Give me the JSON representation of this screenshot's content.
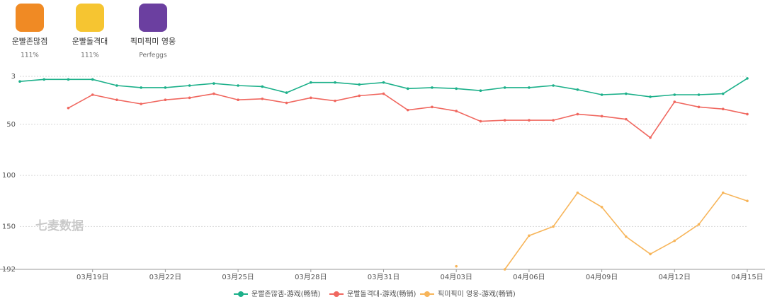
{
  "apps": [
    {
      "name": "운빨존많겜",
      "sub": "111%",
      "color": "#f08a24"
    },
    {
      "name": "운빨돌격대",
      "sub": "111%",
      "color": "#f6c531"
    },
    {
      "name": "픽미픽미 영웅",
      "sub": "Perfeggs",
      "color": "#6b3fa0"
    }
  ],
  "chart_data": {
    "type": "line",
    "watermark": "七麦数据",
    "categories": [
      null,
      null,
      null,
      "03月19日",
      null,
      null,
      "03月22日",
      null,
      null,
      "03月25日",
      null,
      null,
      "03月28日",
      null,
      null,
      "03月31日",
      null,
      null,
      "04月03日",
      null,
      null,
      "04月06日",
      null,
      null,
      "04月09日",
      null,
      null,
      "04月12日",
      null,
      null,
      "04月15日"
    ],
    "ylim": [
      3,
      192
    ],
    "y_inverted": true,
    "yticks": [
      3,
      50,
      100,
      150,
      192
    ],
    "grid": true,
    "legend": "bottom",
    "series": [
      {
        "name": "운빨존많겜-游戏(畅销)",
        "color": "#1cb08a",
        "values": [
          8,
          6,
          6,
          6,
          12,
          14,
          14,
          12,
          10,
          12,
          13,
          19,
          9,
          9,
          11,
          9,
          15,
          14,
          15,
          17,
          14,
          14,
          12,
          16,
          21,
          20,
          23,
          21,
          21,
          20,
          5
        ]
      },
      {
        "name": "운빨돌격대-游戏(畅销)",
        "color": "#f0675f",
        "values": [
          null,
          null,
          34,
          21,
          26,
          30,
          26,
          24,
          20,
          26,
          25,
          29,
          24,
          27,
          22,
          20,
          36,
          33,
          37,
          47,
          46,
          46,
          46,
          40,
          42,
          45,
          63,
          28,
          33,
          35,
          40
        ]
      },
      {
        "name": "픽미픽미 영웅-游戏(畅销)",
        "color": "#f7b55a",
        "values": [
          null,
          null,
          null,
          null,
          null,
          null,
          null,
          null,
          null,
          null,
          null,
          null,
          null,
          null,
          null,
          null,
          null,
          null,
          189,
          null,
          192,
          159,
          150,
          117,
          131,
          160,
          177,
          164,
          148,
          117,
          125
        ]
      }
    ]
  }
}
